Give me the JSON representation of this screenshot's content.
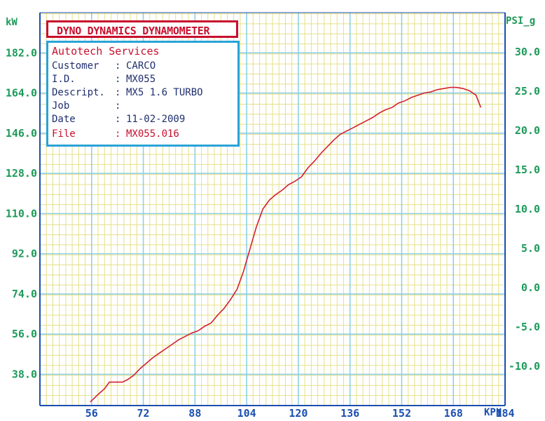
{
  "header": {
    "title": "DYNO DYNAMICS DYNAMOMETER"
  },
  "info": {
    "company": "Autotech Services",
    "rows": [
      {
        "key": "Customer",
        "value": "CARCO"
      },
      {
        "key": "I.D.",
        "value": "MX055"
      },
      {
        "key": "Descript.",
        "value": "MX5 1.6 TURBO"
      },
      {
        "key": "Job",
        "value": ""
      },
      {
        "key": "Date",
        "value": "11-02-2009"
      },
      {
        "key": "File",
        "value": "MX055.016"
      }
    ]
  },
  "colors": {
    "background": "#ffffff",
    "grid_minor": "#e6e088",
    "grid_major": "#8fd0e8",
    "axis": "#1a4fb0",
    "curve": "#d4202a",
    "left_axis_text": "#1e9a5a",
    "right_axis_text": "#1e9a5a",
    "title_border": "#c8102e",
    "info_border": "#29a3d8"
  },
  "chart_data": {
    "type": "line",
    "xlabel": "KPH",
    "ylabel": "kW",
    "y2label": "PSI_g",
    "xlim": [
      40,
      184
    ],
    "ylim": [
      24,
      200
    ],
    "y2lim": [
      -15,
      35
    ],
    "x_ticks": [
      "56",
      "72",
      "88",
      "104",
      "120",
      "136",
      "152",
      "168",
      "184"
    ],
    "y_ticks": [
      "38.0",
      "56.0",
      "74.0",
      "92.0",
      "110.0",
      "128.0",
      "146.0",
      "164.0",
      "182.0"
    ],
    "y2_ticks": [
      "-10.0",
      "-5.0",
      "0.0",
      "5.0",
      "10.0",
      "15.0",
      "20.0",
      "25.0",
      "30.0"
    ],
    "grid": true,
    "legend": "none",
    "series": [
      {
        "x": [
          55.6,
          58,
          60,
          61.5,
          63.5,
          65.5,
          67,
          69,
          71,
          73,
          75,
          77,
          79,
          81,
          83,
          85,
          87,
          89,
          91,
          93,
          95,
          97,
          99,
          101,
          103,
          105,
          107,
          109,
          111,
          113,
          115,
          117,
          119,
          121,
          123,
          125,
          127,
          129,
          131,
          133,
          135,
          137,
          139,
          141,
          143,
          145,
          147,
          149,
          151,
          153,
          155,
          157,
          159,
          161,
          163,
          165,
          167,
          169,
          171,
          173,
          175,
          176.5
        ],
        "y": [
          25.6,
          29.0,
          31.5,
          34.5,
          34.5,
          34.5,
          35.5,
          37.5,
          40.5,
          43.0,
          45.5,
          47.5,
          49.5,
          51.5,
          53.5,
          55.0,
          56.5,
          57.5,
          59.5,
          61.0,
          64.5,
          67.5,
          71.5,
          76.0,
          84.0,
          94.0,
          104.0,
          112.0,
          116.0,
          118.5,
          120.5,
          123.0,
          124.5,
          126.5,
          130.5,
          133.5,
          137.0,
          140.0,
          143.0,
          145.5,
          147.0,
          148.5,
          150.0,
          151.5,
          153.0,
          155.0,
          156.5,
          157.5,
          159.5,
          160.5,
          162.0,
          163.0,
          164.0,
          164.5,
          165.5,
          166.0,
          166.5,
          166.5,
          166.0,
          165.0,
          163.0,
          157.5
        ]
      }
    ]
  }
}
